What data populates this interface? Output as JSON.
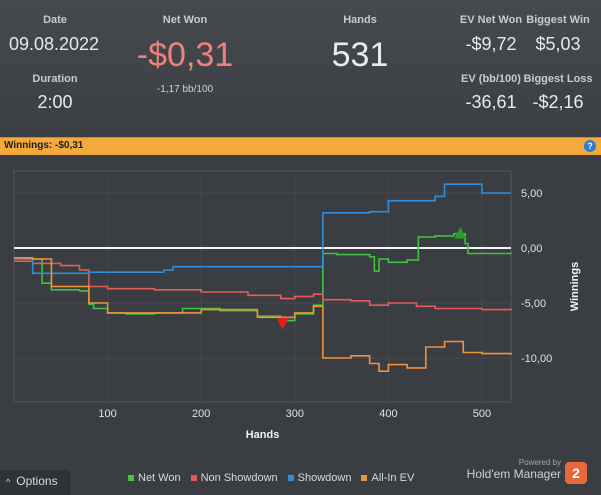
{
  "stats": {
    "date_label": "Date",
    "date_value": "09.08.2022",
    "duration_label": "Duration",
    "duration_value": "2:00",
    "netwon_label": "Net Won",
    "netwon_value": "-$0,31",
    "netwon_sub": "-1,17 bb/100",
    "hands_label": "Hands",
    "hands_value": "531",
    "ev_net_label": "EV Net Won",
    "ev_net_value": "-$9,72",
    "ev_bb_label": "EV (bb/100)",
    "ev_bb_value": "-36,61",
    "biggest_win_label": "Biggest Win",
    "biggest_win_value": "$5,03",
    "biggest_loss_label": "Biggest Loss",
    "biggest_loss_value": "-$2,16"
  },
  "header_bar": {
    "text": "Winnings: -$0,31",
    "help_icon": "question-icon",
    "help_label": "?"
  },
  "footer": {
    "options_label": "Options",
    "options_icon": "chevron-up-icon",
    "powered_by": "Powered by",
    "brand": "Hold'em Manager",
    "brand_badge": "2",
    "legend": [
      {
        "name": "Net Won",
        "color": "#3ec43e"
      },
      {
        "name": "Non Showdown",
        "color": "#e55b5b"
      },
      {
        "name": "Showdown",
        "color": "#2f8fdc"
      },
      {
        "name": "All-In EV",
        "color": "#f0923a"
      }
    ]
  },
  "chart_data": {
    "type": "line",
    "xlabel": "Hands",
    "ylabel": "Winnings",
    "xlim": [
      0,
      531
    ],
    "ylim": [
      -14,
      7
    ],
    "xticks": [
      100,
      200,
      300,
      400,
      500
    ],
    "yticks": [
      5,
      0,
      -5,
      -10
    ],
    "ytick_labels": [
      "5,00",
      "0,00",
      "-5,00",
      "-10,00"
    ],
    "grid": true,
    "markers": [
      {
        "type": "max",
        "x": 477,
        "y": 1.4,
        "color": "#2a9c2a"
      },
      {
        "type": "min",
        "x": 287,
        "y": -6.9,
        "color": "#e01e1e"
      }
    ],
    "series": [
      {
        "name": "Net Won",
        "color": "#3ec43e",
        "x": [
          0,
          20,
          30,
          40,
          70,
          80,
          85,
          100,
          120,
          150,
          180,
          220,
          260,
          285,
          300,
          320,
          330,
          345,
          380,
          385,
          390,
          400,
          420,
          432,
          450,
          470,
          482,
          485,
          531
        ],
        "y": [
          -0.9,
          -1.0,
          -3.2,
          -3.8,
          -3.9,
          -5.1,
          -5.5,
          -5.9,
          -6.0,
          -5.9,
          -5.5,
          -5.7,
          -6.2,
          -6.6,
          -6.0,
          -5.2,
          -0.5,
          -0.6,
          -0.8,
          -2.1,
          -1.0,
          -1.3,
          -1.1,
          1.0,
          1.1,
          1.3,
          0.4,
          -0.5,
          -0.4
        ]
      },
      {
        "name": "Non Showdown",
        "color": "#e55b5b",
        "x": [
          0,
          20,
          50,
          70,
          80,
          100,
          150,
          200,
          250,
          285,
          300,
          320,
          330,
          360,
          380,
          400,
          430,
          450,
          500,
          531
        ],
        "y": [
          -1.2,
          -1.4,
          -1.6,
          -2.0,
          -3.5,
          -3.7,
          -3.8,
          -4.0,
          -4.3,
          -4.6,
          -4.4,
          -4.2,
          -4.7,
          -4.8,
          -5.2,
          -5.0,
          -5.3,
          -5.5,
          -5.6,
          -5.5
        ]
      },
      {
        "name": "Showdown",
        "color": "#2f8fdc",
        "x": [
          0,
          20,
          80,
          100,
          160,
          170,
          320,
          330,
          380,
          400,
          450,
          460,
          500,
          531
        ],
        "y": [
          -1.0,
          -2.3,
          -2.2,
          -2.2,
          -2.0,
          -1.7,
          -1.7,
          3.2,
          3.3,
          4.3,
          4.7,
          5.8,
          5.0,
          5.0
        ]
      },
      {
        "name": "All-In EV",
        "color": "#f0923a",
        "x": [
          0,
          20,
          40,
          80,
          100,
          150,
          200,
          260,
          300,
          320,
          330,
          360,
          380,
          390,
          400,
          420,
          440,
          460,
          480,
          500,
          531
        ],
        "y": [
          -0.9,
          -1.0,
          -3.5,
          -5.0,
          -5.9,
          -5.9,
          -5.6,
          -6.3,
          -5.9,
          -5.3,
          -10.0,
          -9.8,
          -10.5,
          -11.2,
          -10.6,
          -10.9,
          -9.0,
          -8.5,
          -9.5,
          -9.6,
          -9.7
        ]
      }
    ]
  }
}
